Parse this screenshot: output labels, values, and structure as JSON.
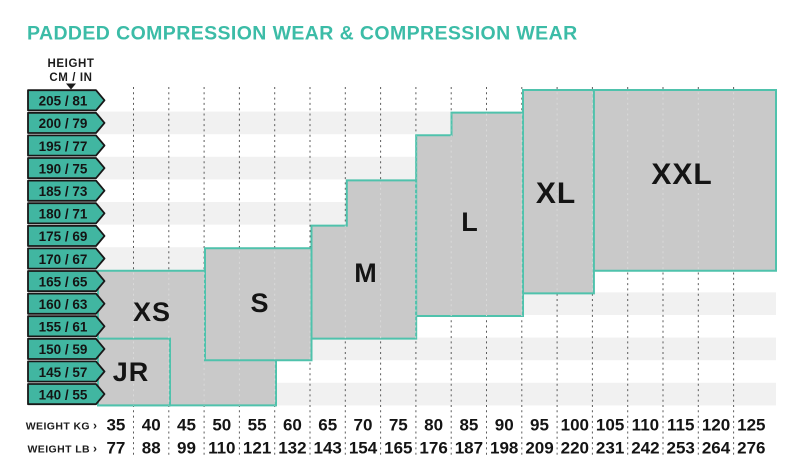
{
  "title": "PADDED COMPRESSION WEAR & COMPRESSION WEAR",
  "colors": {
    "accent_teal": "#3CBCA7",
    "tag_fill": "#41B6A1",
    "box_border": "#4FC2AC",
    "box_fill": "#C9C9C9",
    "row_stripe": "#F1F1F1",
    "gridline": "#5B5B5B",
    "text_dark": "#141414"
  },
  "height_axis": {
    "label_line1": "HEIGHT",
    "label_line2": "CM / IN",
    "arrow_down": "▼"
  },
  "weight_axis": {
    "kg_label": "WEIGHT KG",
    "lb_label": "WEIGHT LB",
    "arrow": "›"
  },
  "heights_cm_in": [
    "205 / 81",
    "200 / 79",
    "195 / 77",
    "190 / 75",
    "185 / 73",
    "180 / 71",
    "175 / 69",
    "170 / 67",
    "165 / 65",
    "160 / 63",
    "155 / 61",
    "150 / 59",
    "145 / 57",
    "140 / 55"
  ],
  "weights_kg": [
    "35",
    "40",
    "45",
    "50",
    "55",
    "60",
    "65",
    "70",
    "75",
    "80",
    "85",
    "90",
    "95",
    "100",
    "105",
    "110",
    "115",
    "120",
    "125"
  ],
  "weights_lb": [
    "77",
    "88",
    "99",
    "110",
    "121",
    "132",
    "143",
    "154",
    "165",
    "176",
    "187",
    "198",
    "209",
    "220",
    "231",
    "242",
    "253",
    "264",
    "276"
  ],
  "sizes": [
    {
      "label": "JR"
    },
    {
      "label": "XS"
    },
    {
      "label": "S"
    },
    {
      "label": "M"
    },
    {
      "label": "L"
    },
    {
      "label": "XL"
    },
    {
      "label": "XXL"
    }
  ],
  "chart_data": {
    "type": "heatmap",
    "title": "PADDED COMPRESSION WEAR & COMPRESSION WEAR",
    "xlabel": "WEIGHT (KG / LB)",
    "ylabel": "HEIGHT (CM / IN)",
    "x_ticks_kg": [
      35,
      40,
      45,
      50,
      55,
      60,
      65,
      70,
      75,
      80,
      85,
      90,
      95,
      100,
      105,
      110,
      115,
      120,
      125
    ],
    "x_ticks_lb": [
      77,
      88,
      99,
      110,
      121,
      132,
      143,
      154,
      165,
      176,
      187,
      198,
      209,
      220,
      231,
      242,
      253,
      264,
      276
    ],
    "y_ticks_cm": [
      205,
      200,
      195,
      190,
      185,
      180,
      175,
      170,
      165,
      160,
      155,
      150,
      145,
      140
    ],
    "y_ticks_in": [
      81,
      79,
      77,
      75,
      73,
      71,
      69,
      67,
      65,
      63,
      61,
      59,
      57,
      55
    ],
    "grid": "dashed vertical gridlines, alternating horizontal row shading",
    "legend_position": "none",
    "regions": [
      {
        "size": "JR",
        "weight_kg": [
          35,
          45
        ],
        "height_cm": [
          140,
          152
        ]
      },
      {
        "size": "XS",
        "weight_kg": [
          35,
          60
        ],
        "height_cm": [
          140,
          168
        ],
        "note": "right portion drawn behind S"
      },
      {
        "size": "S",
        "weight_kg": [
          47,
          64
        ],
        "height_cm": [
          150,
          168
        ]
      },
      {
        "size": "M",
        "weight_kg": [
          62,
          77
        ],
        "height_cm": [
          150,
          186
        ],
        "note": "top steps up from 180 to 185 cm above ~67 kg"
      },
      {
        "size": "L",
        "weight_kg": [
          77,
          92
        ],
        "height_cm": [
          156,
          206
        ],
        "note": "top steps up from 200 to 205 cm above ~82 kg"
      },
      {
        "size": "XL",
        "weight_kg": [
          92,
          103
        ],
        "height_cm": [
          162,
          207
        ]
      },
      {
        "size": "XXL",
        "weight_kg": [
          103,
          126
        ],
        "height_cm": [
          168,
          207
        ]
      }
    ]
  }
}
